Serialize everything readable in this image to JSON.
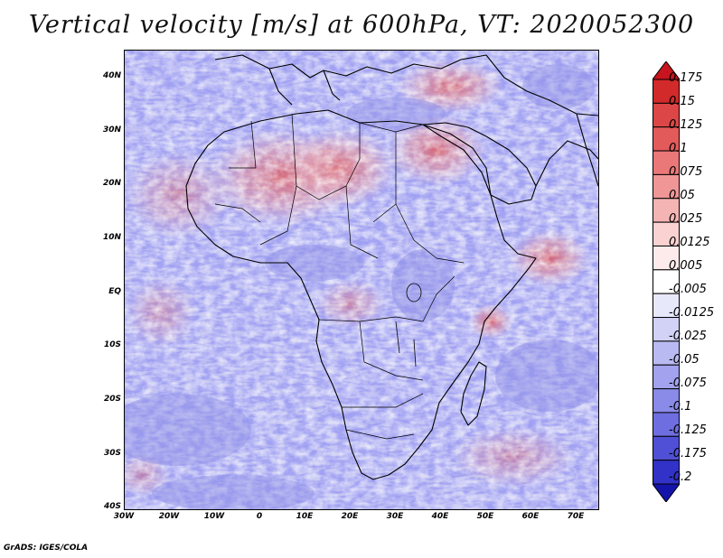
{
  "title": "Vertical velocity [m/s] at 600hPa, VT: 2020052300",
  "credit": "GrADS: IGES/COLA",
  "map": {
    "projection": "latlon",
    "lon_range": [
      -30,
      75
    ],
    "lat_range": [
      -40,
      45
    ],
    "lat_ticks": [
      "40N",
      "30N",
      "20N",
      "10N",
      "EQ",
      "10S",
      "20S",
      "30S",
      "40S"
    ],
    "lon_ticks": [
      "30W",
      "20W",
      "10W",
      "0",
      "10E",
      "20E",
      "30E",
      "40E",
      "50E",
      "60E",
      "70E"
    ],
    "field": "vertical velocity",
    "level": "600hPa",
    "valid_time": "2020052300"
  },
  "colorbar": {
    "labels": [
      "0.175",
      "0.15",
      "0.125",
      "0.1",
      "0.075",
      "0.05",
      "0.025",
      "0.0125",
      "0.005",
      "-0.005",
      "-0.0125",
      "-0.025",
      "-0.05",
      "-0.075",
      "-0.1",
      "-0.125",
      "-0.175",
      "-0.2"
    ],
    "colors": [
      "#c8141e",
      "#d22a2a",
      "#dc4646",
      "#e35a5a",
      "#ea7878",
      "#f09696",
      "#f5b4b4",
      "#fad2d2",
      "#fdebeb",
      "#ffffff",
      "#e8e8fb",
      "#d2d2f7",
      "#babaf2",
      "#a2a2ee",
      "#8a8ae8",
      "#6e6ee0",
      "#5050d6",
      "#3232c8",
      "#1414aa"
    ]
  }
}
